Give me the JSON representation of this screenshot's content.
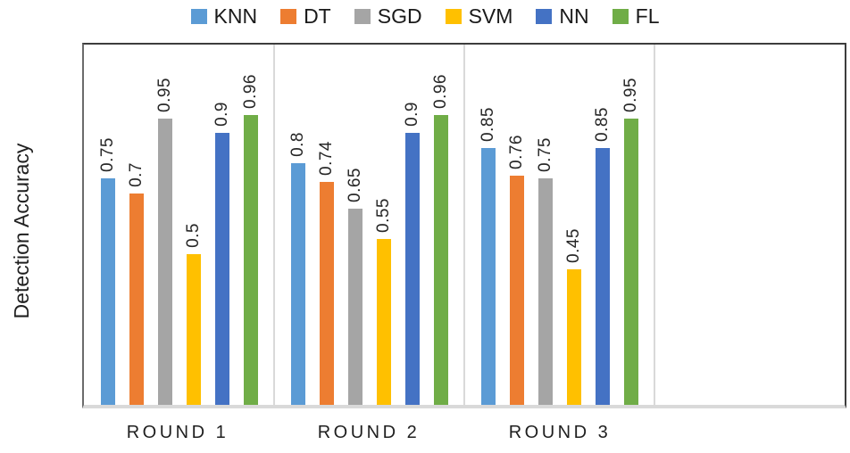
{
  "chart_data": {
    "type": "bar",
    "title": "",
    "xlabel": "",
    "ylabel": "Detection Accuracy",
    "categories": [
      "ROUND 1",
      "ROUND 2",
      "ROUND 3",
      ""
    ],
    "series": [
      {
        "name": "KNN",
        "color": "#5B9BD5",
        "values": [
          0.75,
          0.8,
          0.85
        ]
      },
      {
        "name": "DT",
        "color": "#ED7D31",
        "values": [
          0.7,
          0.74,
          0.76
        ]
      },
      {
        "name": "SGD",
        "color": "#A5A5A5",
        "values": [
          0.95,
          0.65,
          0.75
        ]
      },
      {
        "name": "SVM",
        "color": "#FFC000",
        "values": [
          0.5,
          0.55,
          0.45
        ]
      },
      {
        "name": "NN",
        "color": "#4472C4",
        "values": [
          0.9,
          0.9,
          0.85
        ]
      },
      {
        "name": "FL",
        "color": "#70AD47",
        "values": [
          0.96,
          0.96,
          0.95
        ]
      }
    ],
    "ylim": [
      0,
      1.2
    ],
    "grid": "vertical category separators only",
    "legend_position": "top",
    "data_labels": true,
    "data_label_rotation_deg": -90,
    "y_tick_labels_visible": false
  }
}
